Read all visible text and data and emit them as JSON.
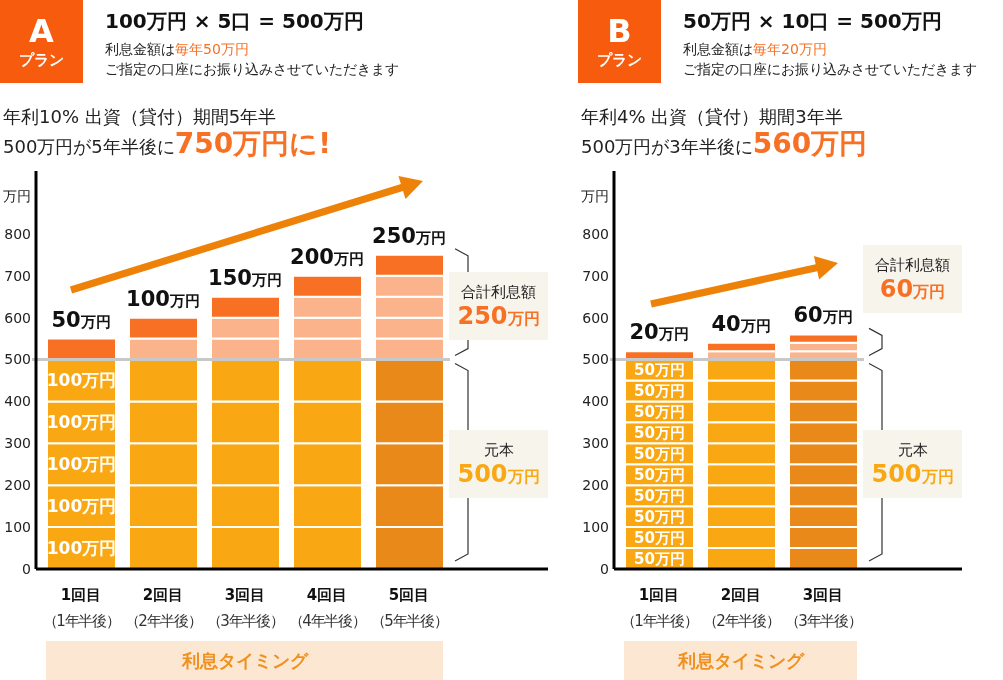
{
  "chart_data": [
    {
      "type": "bar",
      "stacked": true,
      "title": "100万円 × 5口 = 500万円",
      "subtitle": "年利10% 出資（貸付）期間5年半",
      "xlabel": "利息タイミング",
      "ylabel": "万円",
      "categories": [
        "1回目（1年半後）",
        "2回目（2年半後）",
        "3回目（3年半後）",
        "4回目（4年半後）",
        "5回目（5年半後）"
      ],
      "series": [
        {
          "colors": [
            "#f9a814",
            "#f9a814",
            "#f9a814",
            "#f9a814",
            "#e9891a"
          ],
          "values": [
            100,
            100,
            100,
            100,
            100
          ],
          "value_labels": [
            "100万円",
            null,
            null,
            null,
            null
          ]
        },
        {
          "colors": [
            "#f9a814",
            "#f9a814",
            "#f9a814",
            "#f9a814",
            "#e9891a"
          ],
          "values": [
            100,
            100,
            100,
            100,
            100
          ],
          "value_labels": [
            "100万円",
            null,
            null,
            null,
            null
          ]
        },
        {
          "colors": [
            "#f9a814",
            "#f9a814",
            "#f9a814",
            "#f9a814",
            "#e9891a"
          ],
          "values": [
            100,
            100,
            100,
            100,
            100
          ],
          "value_labels": [
            "100万円",
            null,
            null,
            null,
            null
          ]
        },
        {
          "colors": [
            "#f9a814",
            "#f9a814",
            "#f9a814",
            "#f9a814",
            "#e9891a"
          ],
          "values": [
            100,
            100,
            100,
            100,
            100
          ],
          "value_labels": [
            "100万円",
            null,
            null,
            null,
            null
          ]
        },
        {
          "colors": [
            "#f9a814",
            "#f9a814",
            "#f9a814",
            "#f9a814",
            "#e9891a"
          ],
          "values": [
            100,
            100,
            100,
            100,
            100
          ],
          "value_labels": [
            "100万円",
            null,
            null,
            null,
            null
          ]
        },
        {
          "colors": [
            "#f77024",
            "#fbb38b",
            "#fbb38b",
            "#fbb38b",
            "#fbb38b"
          ],
          "values": [
            50,
            50,
            50,
            50,
            50
          ]
        },
        {
          "colors": [
            null,
            "#f77024",
            "#fbb38b",
            "#fbb38b",
            "#fbb38b"
          ],
          "values": [
            null,
            50,
            50,
            50,
            50
          ]
        },
        {
          "colors": [
            null,
            null,
            "#f77024",
            "#fbb38b",
            "#fbb38b"
          ],
          "values": [
            null,
            null,
            50,
            50,
            50
          ]
        },
        {
          "colors": [
            null,
            null,
            null,
            "#f77024",
            "#fbb38b"
          ],
          "values": [
            null,
            null,
            null,
            50,
            50
          ]
        },
        {
          "colors": [
            null,
            null,
            null,
            null,
            "#f77024"
          ],
          "values": [
            null,
            null,
            null,
            null,
            50
          ]
        }
      ],
      "ylim": [
        0,
        950
      ],
      "yticks": [
        0,
        100,
        200,
        300,
        400,
        500,
        600,
        700,
        800
      ],
      "ref_lines": [
        {
          "axis": "y",
          "value": 500,
          "color": "#c8c8c8"
        }
      ],
      "annotations": [
        "A",
        "プラン",
        "利息金額は",
        "毎年50万円",
        "ご指定の口座にお振り込みさせていただきます",
        "500万円が5年半後に",
        "750万円に!",
        "合計利息額",
        "250万円",
        "元本",
        "500万円",
        {
          "text": "50万円",
          "x": "1回目（1年半後）",
          "y": 550
        },
        {
          "text": "100万円",
          "x": "2回目（2年半後）",
          "y": 600
        },
        {
          "text": "150万円",
          "x": "3回目（3年半後）",
          "y": 650
        },
        {
          "text": "200万円",
          "x": "4回目（4年半後）",
          "y": 700
        },
        {
          "text": "250万円",
          "x": "5回目（5年半後）",
          "y": 750
        }
      ]
    },
    {
      "type": "bar",
      "stacked": true,
      "title": "50万円 × 10口 = 500万円",
      "subtitle": "年利4% 出資（貸付）期間3年半",
      "xlabel": "利息タイミング",
      "ylabel": "万円",
      "categories": [
        "1回目（1年半後）",
        "2回目（2年半後）",
        "3回目（3年半後）"
      ],
      "series": [
        {
          "colors": [
            "#f9a814",
            "#f9a814",
            "#e9891a"
          ],
          "values": [
            50,
            50,
            50
          ],
          "value_labels": [
            "50万円",
            null,
            null
          ]
        },
        {
          "colors": [
            "#f9a814",
            "#f9a814",
            "#e9891a"
          ],
          "values": [
            50,
            50,
            50
          ],
          "value_labels": [
            "50万円",
            null,
            null
          ]
        },
        {
          "colors": [
            "#f9a814",
            "#f9a814",
            "#e9891a"
          ],
          "values": [
            50,
            50,
            50
          ],
          "value_labels": [
            "50万円",
            null,
            null
          ]
        },
        {
          "colors": [
            "#f9a814",
            "#f9a814",
            "#e9891a"
          ],
          "values": [
            50,
            50,
            50
          ],
          "value_labels": [
            "50万円",
            null,
            null
          ]
        },
        {
          "colors": [
            "#f9a814",
            "#f9a814",
            "#e9891a"
          ],
          "values": [
            50,
            50,
            50
          ],
          "value_labels": [
            "50万円",
            null,
            null
          ]
        },
        {
          "colors": [
            "#f9a814",
            "#f9a814",
            "#e9891a"
          ],
          "values": [
            50,
            50,
            50
          ],
          "value_labels": [
            "50万円",
            null,
            null
          ]
        },
        {
          "colors": [
            "#f9a814",
            "#f9a814",
            "#e9891a"
          ],
          "values": [
            50,
            50,
            50
          ],
          "value_labels": [
            "50万円",
            null,
            null
          ]
        },
        {
          "colors": [
            "#f9a814",
            "#f9a814",
            "#e9891a"
          ],
          "values": [
            50,
            50,
            50
          ],
          "value_labels": [
            "50万円",
            null,
            null
          ]
        },
        {
          "colors": [
            "#f9a814",
            "#f9a814",
            "#e9891a"
          ],
          "values": [
            50,
            50,
            50
          ],
          "value_labels": [
            "50万円",
            null,
            null
          ]
        },
        {
          "colors": [
            "#f9a814",
            "#f9a814",
            "#e9891a"
          ],
          "values": [
            50,
            50,
            50
          ],
          "value_labels": [
            "50万円",
            null,
            null
          ]
        },
        {
          "colors": [
            "#f77024",
            "#fbb38b",
            "#fbb38b"
          ],
          "values": [
            20,
            20,
            20
          ]
        },
        {
          "colors": [
            null,
            "#f77024",
            "#fbb38b"
          ],
          "values": [
            null,
            20,
            20
          ]
        },
        {
          "colors": [
            null,
            null,
            "#f77024"
          ],
          "values": [
            null,
            null,
            20
          ]
        }
      ],
      "ylim": [
        0,
        950
      ],
      "yticks": [
        0,
        100,
        200,
        300,
        400,
        500,
        600,
        700,
        800
      ],
      "ref_lines": [
        {
          "axis": "y",
          "value": 500,
          "color": "#c8c8c8"
        }
      ],
      "annotations": [
        "B",
        "プラン",
        "利息金額は",
        "毎年20万円",
        "ご指定の口座にお振り込みさせていただきます",
        "500万円が3年半後に",
        "560万円",
        "合計利息額",
        "60万円",
        "元本",
        "500万円",
        {
          "text": "20万円",
          "x": "1回目（1年半後）",
          "y": 520
        },
        {
          "text": "40万円",
          "x": "2回目（2年半後）",
          "y": 540
        },
        {
          "text": "60万円",
          "x": "3回目（3年半後）",
          "y": 560
        }
      ]
    }
  ]
}
